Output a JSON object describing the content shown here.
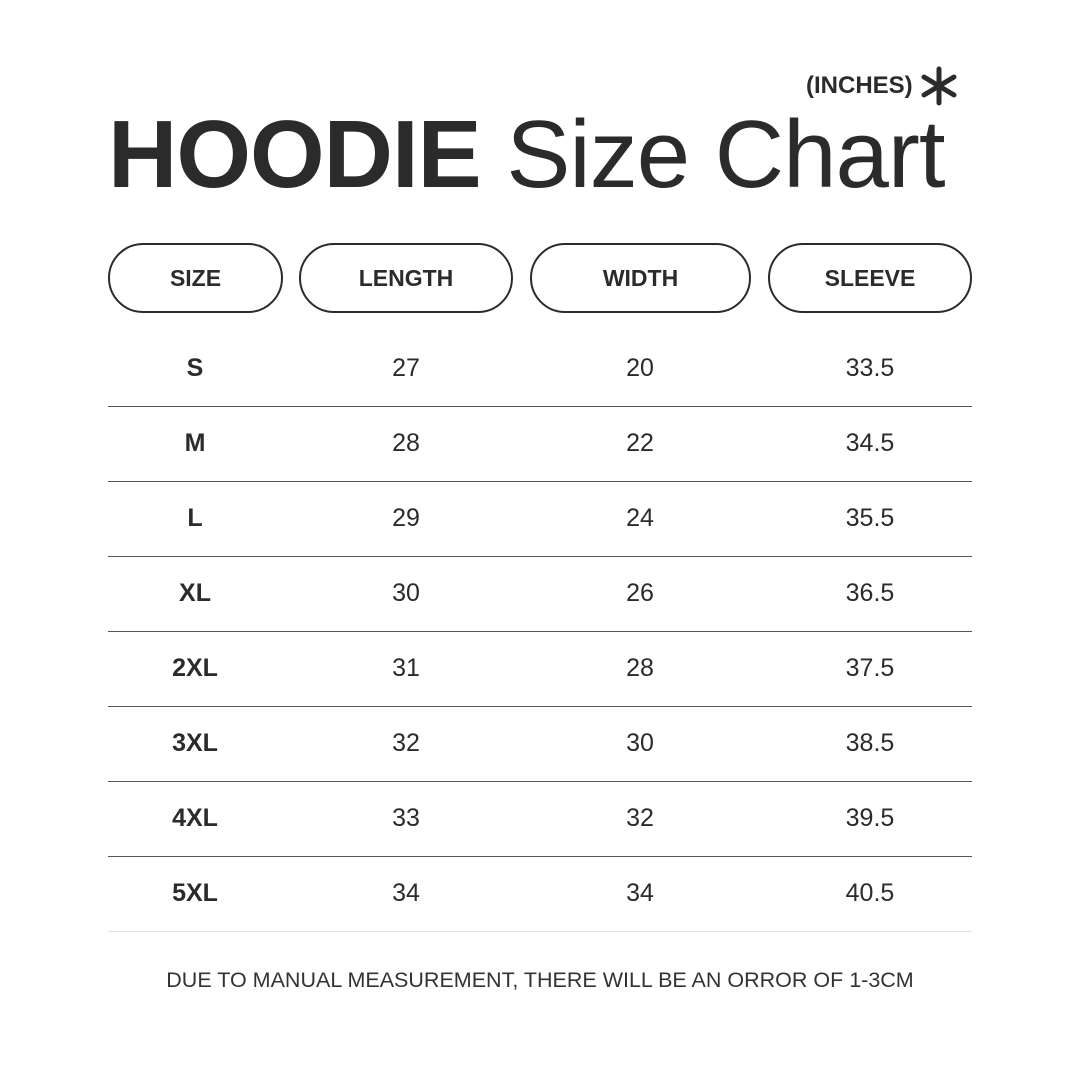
{
  "units": {
    "label": "(INCHES)",
    "icon": "asterisk-icon"
  },
  "title": {
    "bold": "HOODIE",
    "regular": "Size Chart"
  },
  "headers": [
    "SIZE",
    "LENGTH",
    "WIDTH",
    "SLEEVE"
  ],
  "rows": [
    [
      "S",
      "27",
      "20",
      "33.5"
    ],
    [
      "M",
      "28",
      "22",
      "34.5"
    ],
    [
      "L",
      "29",
      "24",
      "35.5"
    ],
    [
      "XL",
      "30",
      "26",
      "36.5"
    ],
    [
      "2XL",
      "31",
      "28",
      "37.5"
    ],
    [
      "3XL",
      "32",
      "30",
      "38.5"
    ],
    [
      "4XL",
      "33",
      "32",
      "39.5"
    ],
    [
      "5XL",
      "34",
      "34",
      "40.5"
    ]
  ],
  "footer": "DUE TO MANUAL MEASUREMENT, THERE WILL BE AN ORROR OF 1-3CM"
}
